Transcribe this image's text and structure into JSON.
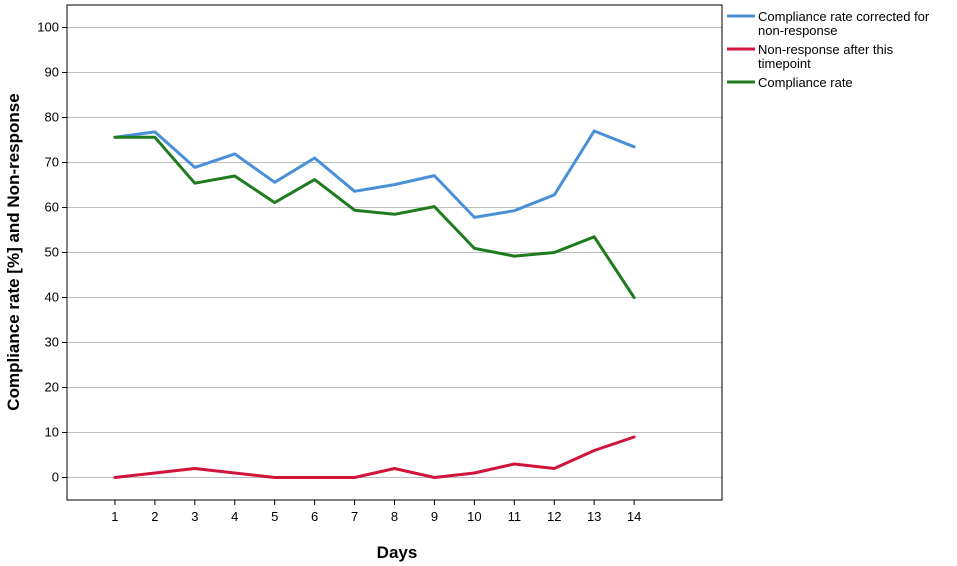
{
  "chart_data": {
    "type": "line",
    "xlabel": "Days",
    "ylabel": "Compliance rate [%] and Non-response",
    "x": [
      1,
      2,
      3,
      4,
      5,
      6,
      7,
      8,
      9,
      10,
      11,
      12,
      13,
      14
    ],
    "xlim": [
      -0.2,
      16.2
    ],
    "ylim": [
      -5,
      105
    ],
    "yticks": [
      0,
      10,
      20,
      30,
      40,
      50,
      60,
      70,
      80,
      90,
      100
    ],
    "grid": "horizontal",
    "legend_position": "top-right",
    "series": [
      {
        "name": "Compliance rate corrected for non-response",
        "legend_lines": [
          "Compliance rate corrected for",
          "non-response"
        ],
        "color": "#4a90d9",
        "values": [
          75.6,
          76.8,
          68.9,
          71.9,
          65.6,
          71.0,
          63.6,
          65.1,
          67.1,
          57.8,
          59.3,
          62.8,
          77.0,
          73.5
        ]
      },
      {
        "name": "Non-response after this timepoint",
        "legend_lines": [
          "Non-response after this",
          "timepoint"
        ],
        "color": "#d0143c",
        "values": [
          0,
          1,
          2,
          1,
          0,
          0,
          0,
          2,
          0,
          1,
          3,
          2,
          6,
          9
        ]
      },
      {
        "name": "Compliance rate",
        "legend_lines": [
          "Compliance rate"
        ],
        "color": "#1e7b1e",
        "values": [
          75.6,
          75.6,
          65.4,
          67.0,
          61.1,
          66.2,
          59.4,
          58.5,
          60.2,
          50.9,
          49.2,
          50.0,
          53.5,
          40.0
        ]
      }
    ]
  }
}
